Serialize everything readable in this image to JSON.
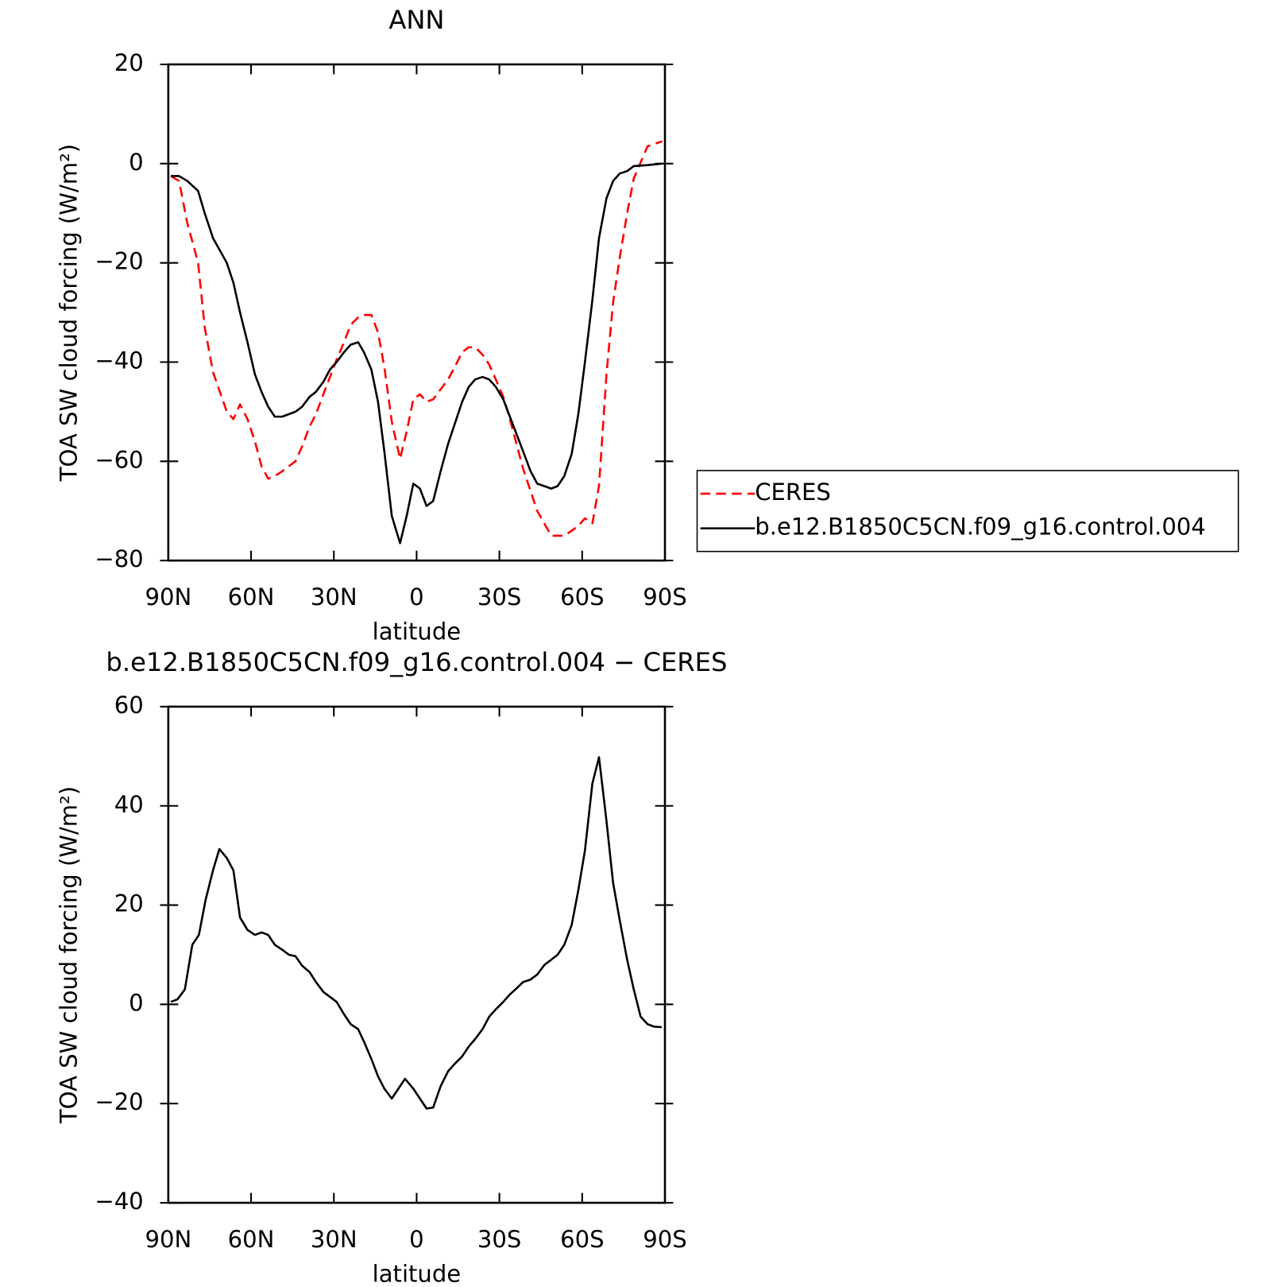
{
  "chart_data": [
    {
      "type": "line",
      "title": "ANN",
      "xlabel": "latitude",
      "ylabel": "TOA SW cloud forcing (W/m²)",
      "x": [
        89.1,
        86.1,
        83.1,
        79.2,
        76.8,
        73.8,
        68.8,
        66.4,
        64.0,
        61.3,
        58.6,
        56.2,
        53.8,
        51.4,
        48.7,
        43.9,
        41.5,
        38.8,
        36.5,
        33.8,
        31.4,
        29.0,
        26.3,
        23.9,
        21.2,
        19.1,
        16.4,
        14.0,
        11.7,
        9.0,
        6.0,
        3.6,
        1.2,
        -1.2,
        -3.6,
        -6.0,
        -8.7,
        -11.4,
        -13.8,
        -16.5,
        -18.9,
        -21.2,
        -23.9,
        -26.3,
        -28.7,
        -31.4,
        -33.8,
        -36.2,
        -38.6,
        -41.3,
        -43.7,
        -48.8,
        -51.1,
        -53.5,
        -56.2,
        -58.6,
        -61.0,
        -63.7,
        -66.1,
        -68.8,
        -71.2,
        -73.6,
        -76.3,
        -78.7,
        -83.7,
        -89
      ],
      "series": [
        {
          "name": "CERES",
          "color": "#ff0000",
          "linestyle": "dashed",
          "values": [
            -2.5,
            -3.5,
            -12,
            -20,
            -33,
            -42,
            -50,
            -51.5,
            -48.5,
            -51.5,
            -56,
            -61,
            -63.5,
            -63,
            -62,
            -60,
            -57,
            -53,
            -50.5,
            -46.5,
            -43,
            -39.5,
            -36,
            -32.5,
            -31,
            -30.5,
            -30.5,
            -34,
            -41,
            -52,
            -59.5,
            -54,
            -47.5,
            -46.5,
            -48,
            -47.5,
            -45.5,
            -43.5,
            -41,
            -38,
            -37,
            -37,
            -38.5,
            -40.5,
            -43.5,
            -47,
            -51.5,
            -56.5,
            -61.5,
            -66,
            -70,
            -75,
            -75,
            -75,
            -74,
            -73,
            -71.5,
            -72.5,
            -65,
            -42.5,
            -28,
            -19,
            -10,
            -3,
            3.5,
            4.5
          ]
        },
        {
          "name": "b.e12.B1850C5CN.f09_g16.control.004",
          "color": "#000000",
          "linestyle": "solid",
          "values": [
            -2.5,
            -2.5,
            -3.5,
            -5.5,
            -10,
            -15,
            -20,
            -24,
            -30,
            -36,
            -42.5,
            -46,
            -49,
            -51,
            -51,
            -50,
            -49,
            -47,
            -46,
            -44,
            -41.5,
            -40,
            -38,
            -36.5,
            -36,
            -38,
            -41.5,
            -48,
            -58,
            -71,
            -76.5,
            -71,
            -64.5,
            -65.5,
            -69,
            -68,
            -62,
            -56.5,
            -52.5,
            -48,
            -45,
            -43.5,
            -43,
            -43.5,
            -45,
            -47.5,
            -51,
            -54.5,
            -58,
            -62,
            -64.5,
            -65.5,
            -65,
            -63,
            -58.5,
            -50.5,
            -40,
            -27.5,
            -15,
            -7,
            -3.5,
            -2,
            -1.5,
            -0.5,
            -0.3,
            0
          ]
        }
      ],
      "xlim": [
        90,
        -90
      ],
      "xticks": [
        {
          "value": 90,
          "label": "90N"
        },
        {
          "value": 60,
          "label": "60N"
        },
        {
          "value": 30,
          "label": "30N"
        },
        0,
        {
          "value": -30,
          "label": "30S"
        },
        {
          "value": -60,
          "label": "60S"
        },
        {
          "value": -90,
          "label": "90S"
        }
      ],
      "ylim": [
        -80,
        20
      ],
      "yticks": [
        {
          "value": -80,
          "label": "−80"
        },
        {
          "value": -60,
          "label": "−60"
        },
        {
          "value": -40,
          "label": "−40"
        },
        {
          "value": -20,
          "label": "−20"
        },
        0,
        20
      ],
      "legend": "right"
    },
    {
      "type": "line",
      "title": "b.e12.B1850C5CN.f09_g16.control.004 − CERES",
      "xlabel": "latitude",
      "ylabel": "TOA SW cloud forcing (W/m²)",
      "x": [
        89.1,
        86.7,
        84.0,
        81.3,
        78.9,
        76.5,
        73.8,
        71.5,
        68.8,
        66.4,
        64.0,
        61.3,
        58.6,
        56.2,
        53.8,
        51.4,
        48.7,
        46.3,
        43.9,
        41.5,
        38.8,
        36.5,
        33.8,
        31.4,
        29.0,
        26.3,
        23.9,
        21.2,
        19.1,
        16.4,
        14.0,
        11.7,
        9.0,
        6.6,
        4.2,
        1.2,
        -1.2,
        -3.6,
        -6.0,
        -8.7,
        -11.4,
        -13.8,
        -16.5,
        -18.9,
        -21.2,
        -23.9,
        -26.3,
        -28.7,
        -31.4,
        -33.8,
        -36.2,
        -38.6,
        -41.3,
        -43.7,
        -46.4,
        -48.8,
        -51.1,
        -53.5,
        -56.2,
        -58.6,
        -61.0,
        -63.7,
        -66.1,
        -68.8,
        -71.2,
        -73.6,
        -76.3,
        -78.7,
        -81.2,
        -83.7,
        -86.1,
        -88.8
      ],
      "series": [
        {
          "color": "#000000",
          "linestyle": "solid",
          "values": [
            0.5,
            1,
            3,
            12,
            14,
            21,
            27,
            31.3,
            29.5,
            27,
            17.5,
            15,
            14,
            14.5,
            14,
            12,
            11,
            10,
            9.7,
            7.8,
            6.5,
            4.5,
            2.5,
            1.5,
            0.5,
            -2,
            -4,
            -5,
            -7.5,
            -11,
            -14.5,
            -17,
            -19,
            -17,
            -15,
            -17,
            -19,
            -21,
            -20.8,
            -16.5,
            -13.5,
            -12,
            -10.5,
            -8.5,
            -7,
            -5,
            -2.5,
            -1,
            0.5,
            2,
            3.2,
            4.5,
            5,
            6,
            8,
            9,
            10,
            12,
            16,
            23,
            31,
            44.5,
            49.8,
            37,
            24.5,
            17,
            9,
            3,
            -2.5,
            -4,
            -4.5,
            -4.6
          ]
        }
      ],
      "xlim": [
        90,
        -90
      ],
      "xticks": [
        {
          "value": 90,
          "label": "90N"
        },
        {
          "value": 60,
          "label": "60N"
        },
        {
          "value": 30,
          "label": "30N"
        },
        0,
        {
          "value": -30,
          "label": "30S"
        },
        {
          "value": -60,
          "label": "60S"
        },
        {
          "value": -90,
          "label": "90S"
        }
      ],
      "ylim": [
        -40,
        60
      ],
      "yticks": [
        {
          "value": -40,
          "label": "−40"
        },
        {
          "value": -20,
          "label": "−20"
        },
        0,
        20,
        40,
        60
      ]
    }
  ]
}
